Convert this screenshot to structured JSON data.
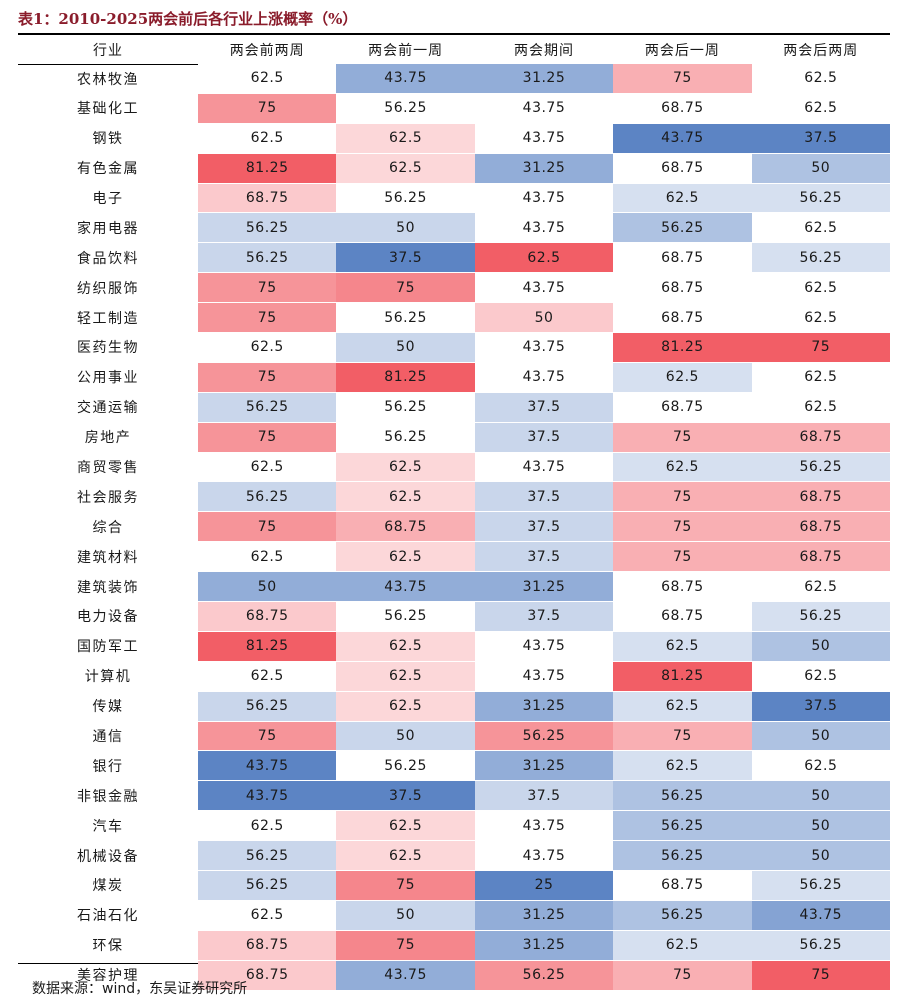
{
  "caption": "表1：2010-2025两会前后各行业上涨概率（%）",
  "headers": [
    "行业",
    "两会前两周",
    "两会前一周",
    "两会期间",
    "两会后一周",
    "两会后两周"
  ],
  "rows": [
    {
      "industry": "农林牧渔",
      "values": [
        "62.5",
        "43.75",
        "31.25",
        "75",
        "62.5"
      ]
    },
    {
      "industry": "基础化工",
      "values": [
        "75",
        "56.25",
        "43.75",
        "68.75",
        "62.5"
      ]
    },
    {
      "industry": "钢铁",
      "values": [
        "62.5",
        "62.5",
        "43.75",
        "43.75",
        "37.5"
      ]
    },
    {
      "industry": "有色金属",
      "values": [
        "81.25",
        "62.5",
        "31.25",
        "68.75",
        "50"
      ]
    },
    {
      "industry": "电子",
      "values": [
        "68.75",
        "56.25",
        "43.75",
        "62.5",
        "56.25"
      ]
    },
    {
      "industry": "家用电器",
      "values": [
        "56.25",
        "50",
        "43.75",
        "56.25",
        "62.5"
      ]
    },
    {
      "industry": "食品饮料",
      "values": [
        "56.25",
        "37.5",
        "62.5",
        "68.75",
        "56.25"
      ]
    },
    {
      "industry": "纺织服饰",
      "values": [
        "75",
        "75",
        "43.75",
        "68.75",
        "62.5"
      ]
    },
    {
      "industry": "轻工制造",
      "values": [
        "75",
        "56.25",
        "50",
        "68.75",
        "62.5"
      ]
    },
    {
      "industry": "医药生物",
      "values": [
        "62.5",
        "50",
        "43.75",
        "81.25",
        "75"
      ]
    },
    {
      "industry": "公用事业",
      "values": [
        "75",
        "81.25",
        "43.75",
        "62.5",
        "62.5"
      ]
    },
    {
      "industry": "交通运输",
      "values": [
        "56.25",
        "56.25",
        "37.5",
        "68.75",
        "62.5"
      ]
    },
    {
      "industry": "房地产",
      "values": [
        "75",
        "56.25",
        "37.5",
        "75",
        "68.75"
      ]
    },
    {
      "industry": "商贸零售",
      "values": [
        "62.5",
        "62.5",
        "43.75",
        "62.5",
        "56.25"
      ]
    },
    {
      "industry": "社会服务",
      "values": [
        "56.25",
        "62.5",
        "37.5",
        "75",
        "68.75"
      ]
    },
    {
      "industry": "综合",
      "values": [
        "75",
        "68.75",
        "37.5",
        "75",
        "68.75"
      ]
    },
    {
      "industry": "建筑材料",
      "values": [
        "62.5",
        "62.5",
        "37.5",
        "75",
        "68.75"
      ]
    },
    {
      "industry": "建筑装饰",
      "values": [
        "50",
        "43.75",
        "31.25",
        "68.75",
        "62.5"
      ]
    },
    {
      "industry": "电力设备",
      "values": [
        "68.75",
        "56.25",
        "37.5",
        "68.75",
        "56.25"
      ]
    },
    {
      "industry": "国防军工",
      "values": [
        "81.25",
        "62.5",
        "43.75",
        "62.5",
        "50"
      ]
    },
    {
      "industry": "计算机",
      "values": [
        "62.5",
        "62.5",
        "43.75",
        "81.25",
        "62.5"
      ]
    },
    {
      "industry": "传媒",
      "values": [
        "56.25",
        "62.5",
        "31.25",
        "62.5",
        "37.5"
      ]
    },
    {
      "industry": "通信",
      "values": [
        "75",
        "50",
        "56.25",
        "75",
        "50"
      ]
    },
    {
      "industry": "银行",
      "values": [
        "43.75",
        "56.25",
        "31.25",
        "62.5",
        "62.5"
      ]
    },
    {
      "industry": "非银金融",
      "values": [
        "43.75",
        "37.5",
        "37.5",
        "56.25",
        "50"
      ]
    },
    {
      "industry": "汽车",
      "values": [
        "62.5",
        "62.5",
        "43.75",
        "56.25",
        "50"
      ]
    },
    {
      "industry": "机械设备",
      "values": [
        "56.25",
        "62.5",
        "43.75",
        "56.25",
        "50"
      ]
    },
    {
      "industry": "煤炭",
      "values": [
        "56.25",
        "75",
        "25",
        "68.75",
        "56.25"
      ]
    },
    {
      "industry": "石油石化",
      "values": [
        "62.5",
        "50",
        "31.25",
        "56.25",
        "43.75"
      ]
    },
    {
      "industry": "环保",
      "values": [
        "68.75",
        "75",
        "31.25",
        "62.5",
        "56.25"
      ]
    },
    {
      "industry": "美容护理",
      "values": [
        "68.75",
        "43.75",
        "56.25",
        "75",
        "75"
      ]
    }
  ],
  "source": "数据来源：wind，东吴证券研究所"
}
